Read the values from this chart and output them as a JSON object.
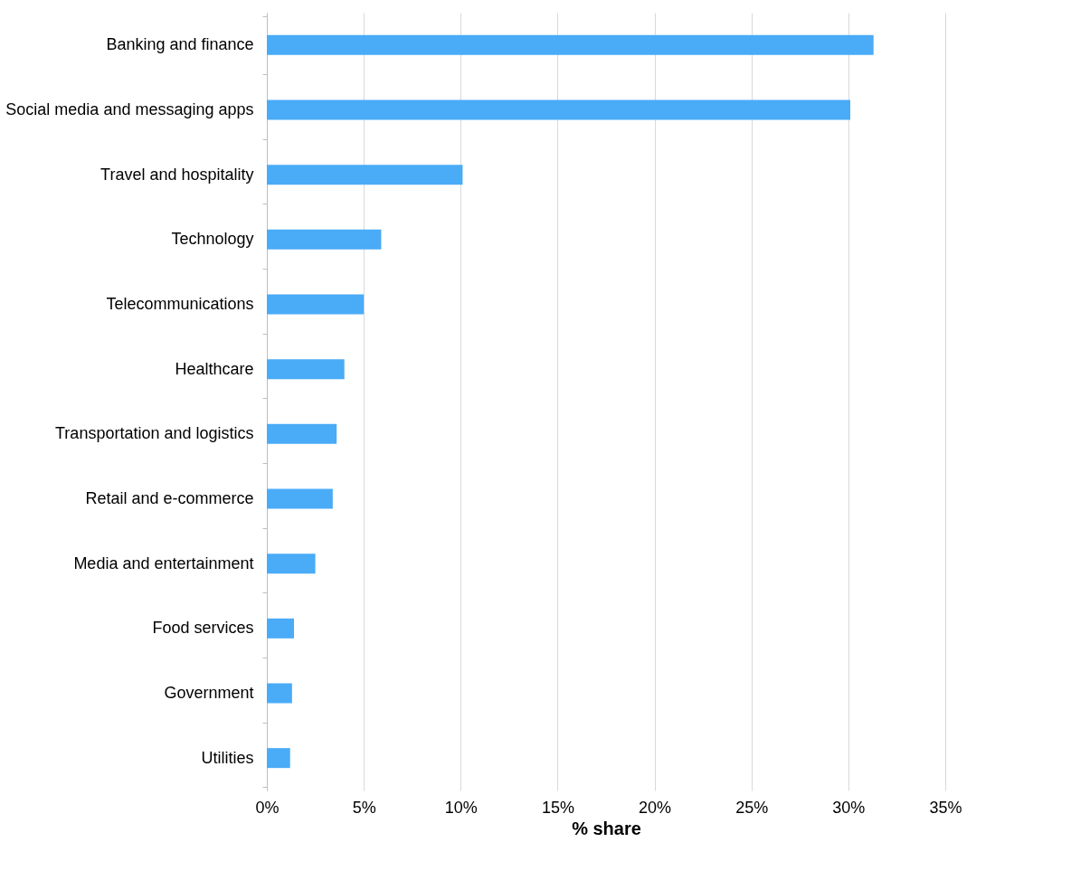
{
  "chart_data": {
    "type": "bar",
    "orientation": "horizontal",
    "xlabel": "% share",
    "categories": [
      "Banking and finance",
      "Social media and messaging apps",
      "Travel and hospitality",
      "Technology",
      "Telecommunications",
      "Healthcare",
      "Transportation and logistics",
      "Retail and e-commerce",
      "Media and entertainment",
      "Food services",
      "Government",
      "Utilities"
    ],
    "values": [
      31.3,
      30.1,
      10.1,
      5.9,
      5.0,
      4.0,
      3.6,
      3.4,
      2.5,
      1.4,
      1.3,
      1.2
    ],
    "color": "#4aabf7",
    "xlim": [
      0,
      35
    ],
    "xticks": [
      {
        "value": 0,
        "label": "0%"
      },
      {
        "value": 5,
        "label": "5%"
      },
      {
        "value": 10,
        "label": "10%"
      },
      {
        "value": 15,
        "label": "15%"
      },
      {
        "value": 20,
        "label": "20%"
      },
      {
        "value": 25,
        "label": "25%"
      },
      {
        "value": 30,
        "label": "30%"
      },
      {
        "value": 35,
        "label": "35%"
      }
    ],
    "grid": "x"
  }
}
